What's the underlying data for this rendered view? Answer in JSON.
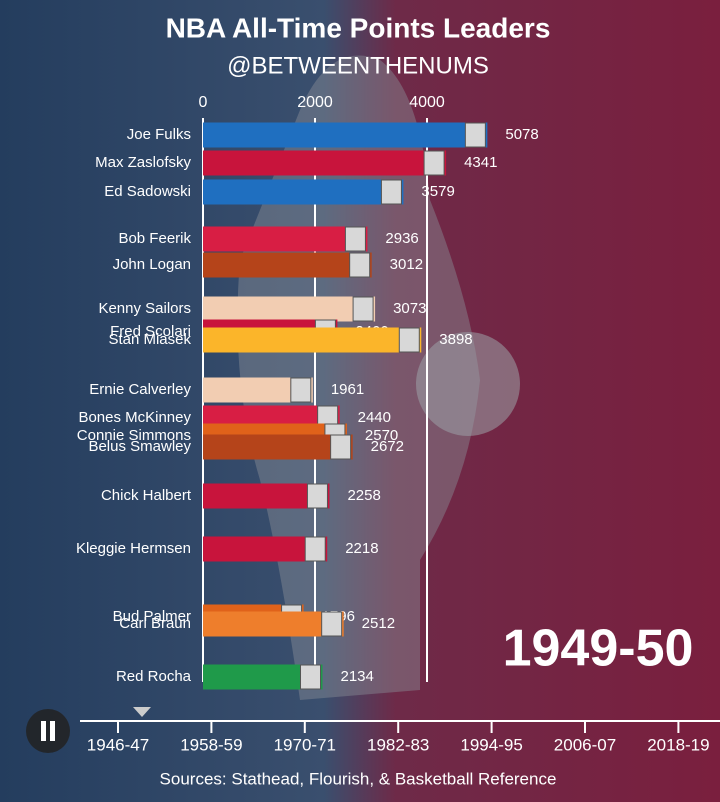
{
  "chart_data": {
    "type": "bar",
    "orientation": "horizontal",
    "title": "NBA All-Time Points Leaders",
    "subtitle": "@BETWEENTHENUMS",
    "period": "1949-50",
    "source": "Sources: Stathead, Flourish, & Basketball Reference",
    "categories": [
      "Joe Fulks",
      "Max Zaslofsky",
      "Ed Sadowski",
      "Bob Feerik",
      "John Logan",
      "Kenny Sailors",
      "Fred Scolari",
      "Stan Miasek",
      "Ernie Calverley",
      "Bones McKinney",
      "Connie Simmons",
      "Belus Smawley",
      "Chick Halbert",
      "Kleggie Hermsen",
      "Bud Palmer",
      "Carl Braun",
      "Red Rocha"
    ],
    "values": [
      5078,
      4341,
      3579,
      2936,
      3012,
      3073,
      2400,
      3898,
      1961,
      2440,
      2570,
      2672,
      2258,
      2218,
      1796,
      2512,
      2134
    ],
    "colors": [
      "#1f6fc0",
      "#c8143c",
      "#1f6fc0",
      "#d81e44",
      "#b5441a",
      "#f2cdb2",
      "#c8143c",
      "#fbb52a",
      "#f2cdb2",
      "#d81e44",
      "#e0621a",
      "#b5441a",
      "#c8143c",
      "#c8143c",
      "#e0621a",
      "#ee7e2c",
      "#1f9a4a"
    ],
    "xlim": [
      0,
      6000
    ],
    "xticks": [
      0,
      2000,
      4000
    ],
    "grid": true,
    "timeline": [
      "1946-47",
      "1958-59",
      "1970-71",
      "1982-83",
      "1994-95",
      "2006-07",
      "2018-19"
    ]
  }
}
